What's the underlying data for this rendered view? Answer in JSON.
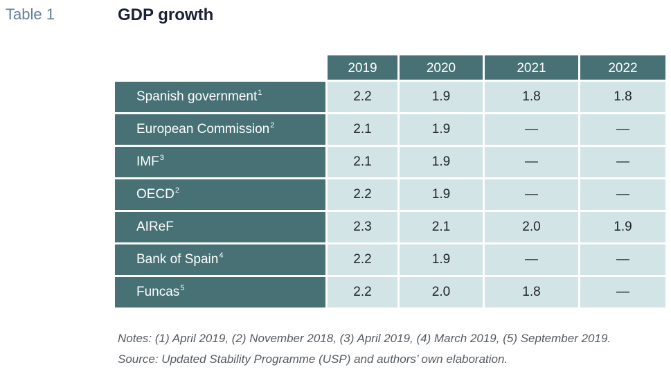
{
  "header": {
    "label": "Table 1",
    "title": "GDP growth"
  },
  "table": {
    "columns": [
      "2019",
      "2020",
      "2021",
      "2022"
    ],
    "rows": [
      {
        "name": "Spanish government",
        "note": "1",
        "values": [
          "2.2",
          "1.9",
          "1.8",
          "1.8"
        ]
      },
      {
        "name": "European Commission",
        "note": "2",
        "values": [
          "2.1",
          "1.9",
          "—",
          "—"
        ]
      },
      {
        "name": "IMF",
        "note": "3",
        "values": [
          "2.1",
          "1.9",
          "—",
          "—"
        ]
      },
      {
        "name": "OECD",
        "note": "2",
        "values": [
          "2.2",
          "1.9",
          "—",
          "—"
        ]
      },
      {
        "name": "AIReF",
        "note": "",
        "values": [
          "2.3",
          "2.1",
          "2.0",
          "1.9"
        ]
      },
      {
        "name": "Bank of Spain",
        "note": "4",
        "values": [
          "2.2",
          "1.9",
          "—",
          "—"
        ]
      },
      {
        "name": "Funcas",
        "note": "5",
        "values": [
          "2.2",
          "2.0",
          "1.8",
          "—"
        ]
      }
    ]
  },
  "footer": {
    "notes": "Notes: (1) April 2019, (2) November 2018, (3) April 2019, (4) March 2019, (5) September 2019.",
    "source": "Source: Updated Stability Programme (USP) and authors’ own elaboration."
  },
  "colors": {
    "header_fill": "#477175",
    "cell_fill": "#d2e4e6",
    "label_color": "#5e7f9a",
    "title_color": "#1a2035"
  }
}
